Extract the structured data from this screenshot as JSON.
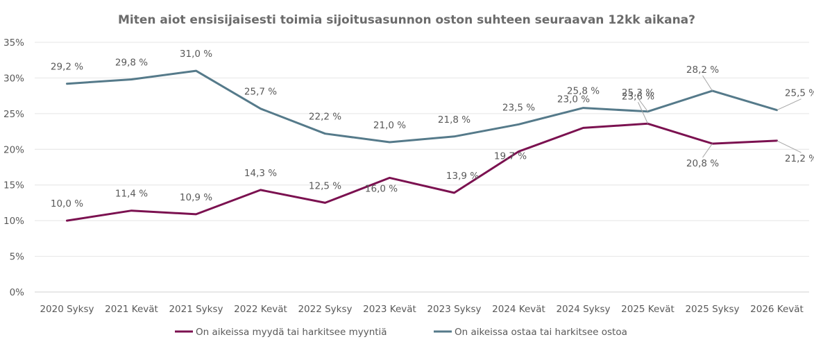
{
  "chart_data": {
    "type": "line",
    "title": "Miten aiot ensisijaisesti toimia sijoitusasunnon oston suhteen seuraavan 12kk aikana?",
    "categories": [
      "2020 Syksy",
      "2021 Kevät",
      "2021 Syksy",
      "2022 Kevät",
      "2022 Syksy",
      "2023 Kevät",
      "2023 Syksy",
      "2024 Kevät",
      "2024 Syksy",
      "2025 Kevät",
      "2025 Syksy",
      "2026 Kevät"
    ],
    "ylim": [
      0,
      35
    ],
    "yticks": [
      0,
      5,
      10,
      15,
      20,
      25,
      30,
      35
    ],
    "ytick_labels": [
      "0%",
      "5%",
      "10%",
      "15%",
      "20%",
      "25%",
      "30%",
      "35%"
    ],
    "grid": true,
    "legend_position": "bottom",
    "series": [
      {
        "name": "On aikeissa myydä tai harkitsee myyntiä",
        "color": "#7b1150",
        "values": [
          10.0,
          11.4,
          10.9,
          14.3,
          12.5,
          16.0,
          13.9,
          19.7,
          23.0,
          23.6,
          20.8,
          21.2
        ],
        "labels": [
          "10,0 %",
          "11,4 %",
          "10,9 %",
          "14,3 %",
          "12,5 %",
          "16,0 %",
          "13,9 %",
          "19,7 %",
          "23,0 %",
          "23,6 %",
          "20,8 %",
          "21,2 %"
        ]
      },
      {
        "name": "On aikeissa ostaa tai harkitsee ostoa",
        "color": "#557a8a",
        "values": [
          29.2,
          29.8,
          31.0,
          25.7,
          22.2,
          21.0,
          21.8,
          23.5,
          25.8,
          25.3,
          28.2,
          25.5
        ],
        "labels": [
          "29,2 %",
          "29,8 %",
          "31,0 %",
          "25,7 %",
          "22,2 %",
          "21,0 %",
          "21,8 %",
          "23,5 %",
          "25,8 %",
          "25,3 %",
          "28,2 %",
          "25,5 %"
        ]
      }
    ]
  }
}
